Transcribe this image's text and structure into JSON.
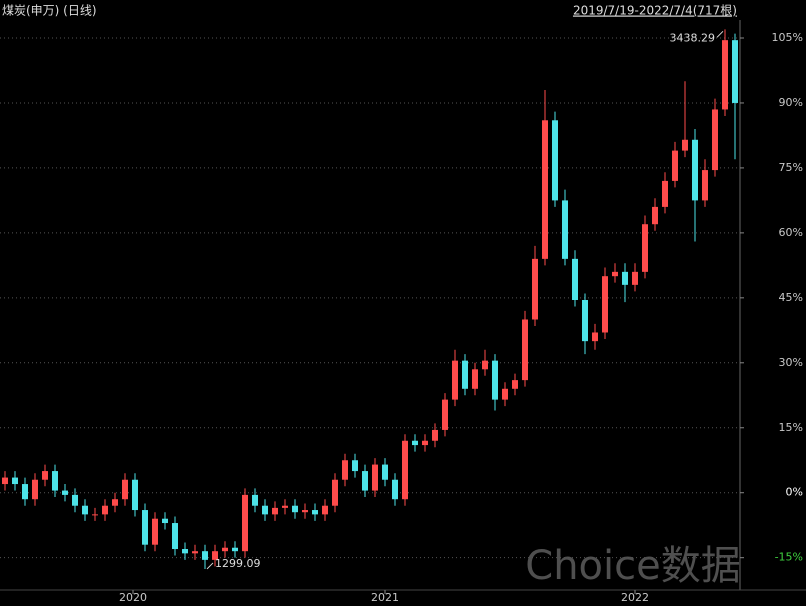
{
  "chart_data": {
    "type": "candlestick",
    "title": "煤炭(申万) (日线)",
    "range_label": "2019/7/19-2022/7/4(717根)",
    "watermark": "Choice数据",
    "annotations": {
      "max": "3438.29",
      "min": "1299.09"
    },
    "up_color": "#ff4b4b",
    "down_color": "#4de3e8",
    "xlim": [
      0,
      74
    ],
    "xticks": [
      {
        "value": 13.3,
        "label": "2020"
      },
      {
        "value": 38.5,
        "label": "2021"
      },
      {
        "value": 63.5,
        "label": "2022"
      }
    ],
    "ylim": [
      -22,
      108
    ],
    "yticks": [
      {
        "value": -15,
        "label": "-15%"
      },
      {
        "value": 0,
        "label": "0%"
      },
      {
        "value": 15,
        "label": "15%"
      },
      {
        "value": 30,
        "label": "30%"
      },
      {
        "value": 45,
        "label": "45%"
      },
      {
        "value": 60,
        "label": "60%"
      },
      {
        "value": 75,
        "label": "75%"
      },
      {
        "value": 90,
        "label": "90%"
      },
      {
        "value": 105,
        "label": "105%"
      }
    ],
    "grid": true,
    "open": [
      2,
      3.5,
      2,
      -1.5,
      3,
      5,
      0.5,
      -0.5,
      -3,
      -5,
      -5,
      -3,
      -1.5,
      3,
      -4,
      -12,
      -6,
      -7,
      -13,
      -14,
      -13.5,
      -15.5,
      -13.5,
      -12.7,
      -13.5,
      -0.5,
      -3,
      -5,
      -3.5,
      -3,
      -4.5,
      -4,
      -5,
      -3,
      3,
      7.5,
      5,
      0.5,
      6.5,
      3,
      -1.5,
      12,
      11,
      12,
      14.5,
      21.5,
      30.5,
      24,
      28.5,
      30.5,
      21.5,
      24,
      26,
      40,
      54,
      86,
      67.5,
      54,
      44.5,
      35,
      37,
      50,
      51,
      48,
      51,
      62,
      66,
      72,
      79,
      81.5,
      67.5,
      74.5,
      88.5,
      104.5
    ],
    "high": [
      5,
      5,
      3.5,
      4.5,
      6.5,
      6.5,
      2,
      1,
      -1.5,
      -3.5,
      -1.5,
      0,
      4.5,
      4.5,
      -2.5,
      -4.5,
      -4.5,
      -5.5,
      -11.5,
      -12,
      -12,
      -12,
      -11.2,
      -11.2,
      1,
      1,
      -1.5,
      -2,
      -1.5,
      -1.5,
      -2.5,
      -2.5,
      -1.5,
      4.5,
      9,
      9,
      6.5,
      8,
      8,
      4.5,
      13.5,
      13.5,
      13.5,
      16,
      23,
      33,
      32,
      30,
      33,
      32,
      25.5,
      27.5,
      42,
      57,
      93,
      88,
      70,
      56,
      46,
      39,
      52,
      53,
      53,
      53,
      64,
      68,
      74,
      81,
      95,
      84,
      77,
      91,
      107,
      106
    ],
    "low": [
      0.5,
      0.5,
      -3,
      -3,
      1.5,
      -1,
      -2,
      -4.5,
      -6.5,
      -6.5,
      -6.5,
      -4.5,
      -3,
      -5.5,
      -13.5,
      -13.5,
      -8.5,
      -14.5,
      -15.5,
      -15.5,
      -17.6,
      -17,
      -15,
      -15,
      -15,
      -4.5,
      -6.5,
      -6.5,
      -5,
      -6,
      -6,
      -6.5,
      -6.5,
      -4.5,
      1.5,
      3.5,
      -1,
      -1,
      1.5,
      -3,
      -3,
      9.5,
      9.5,
      10.5,
      13,
      20,
      22.5,
      22.5,
      27,
      19,
      20,
      22.5,
      24.5,
      38.5,
      52.5,
      66,
      52.5,
      43,
      32,
      33,
      35.5,
      48.5,
      44,
      46.5,
      49.5,
      60.5,
      64.5,
      70.5,
      77.5,
      58,
      66,
      73,
      87,
      77
    ],
    "close": [
      3.5,
      2,
      -1.5,
      3,
      5,
      0.5,
      -0.5,
      -3,
      -5,
      -5,
      -3,
      -1.5,
      3,
      -4,
      -12,
      -6,
      -7,
      -13,
      -14,
      -13.5,
      -15.5,
      -13.5,
      -12.7,
      -13.5,
      -0.5,
      -3,
      -5,
      -3.5,
      -3,
      -4.5,
      -4,
      -5,
      -3,
      3,
      7.5,
      5,
      0.5,
      6.5,
      3,
      -1.5,
      12,
      11,
      12,
      14.5,
      21.5,
      30.5,
      24,
      28.5,
      30.5,
      21.5,
      24,
      26,
      40,
      54,
      86,
      67.5,
      54,
      44.5,
      35,
      37,
      50,
      51,
      48,
      51,
      62,
      66,
      72,
      79,
      81.5,
      67.5,
      74.5,
      88.5,
      104.5,
      90
    ]
  }
}
